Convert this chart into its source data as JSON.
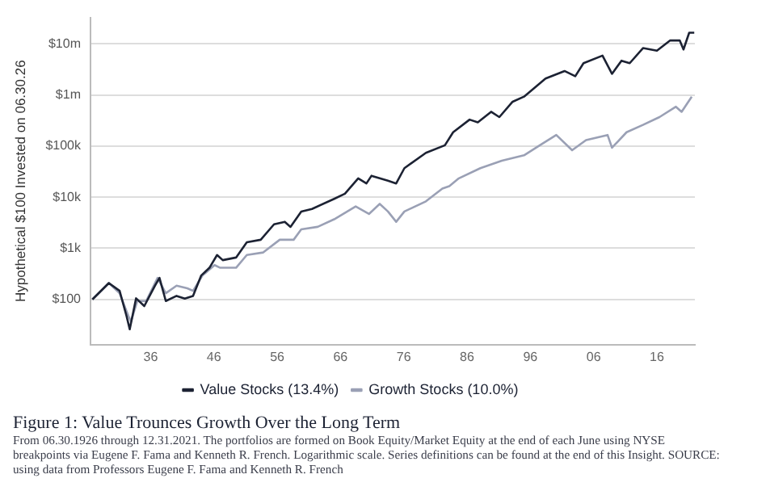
{
  "chart_data": {
    "type": "line",
    "ylabel": "Hypothetical $100 Invested on 06.30.26",
    "title": "Figure 1: Value Trounces Growth Over the Long Term",
    "annotations": [
      "From 06.30.1926 through 12.31.2021. The portfolios are formed on Book Equity/Market Equity at the end of each June using NYSE breakpoints via Eugene F. Fama and Kenneth R. French. Logarithmic scale. Series definitions can be found at the end of this Insight. SOURCE: using data from Professors Eugene F. Fama and Kenneth R. French"
    ],
    "log": "y",
    "grid": "y",
    "legend": "bottom",
    "marker": "none",
    "line_style": "solid",
    "xlim": [
      1926.5,
      2022
    ],
    "xticks": [
      {
        "value": 1936,
        "label": "36"
      },
      {
        "value": 1946,
        "label": "46"
      },
      {
        "value": 1956,
        "label": "56"
      },
      {
        "value": 1966,
        "label": "66"
      },
      {
        "value": 1976,
        "label": "76"
      },
      {
        "value": 1986,
        "label": "86"
      },
      {
        "value": 1996,
        "label": "96"
      },
      {
        "value": 2006,
        "label": "06"
      },
      {
        "value": 2016,
        "label": "16"
      }
    ],
    "ylim": [
      13,
      33000000
    ],
    "yticks": [
      {
        "value": 100,
        "label": "$100"
      },
      {
        "value": 1000,
        "label": "$1k"
      },
      {
        "value": 10000,
        "label": "$10k"
      },
      {
        "value": 100000,
        "label": "$100k"
      },
      {
        "value": 1000000,
        "label": "$1m"
      },
      {
        "value": 10000000,
        "label": "$10m"
      }
    ],
    "series": [
      {
        "name": "Value Stocks (13.4%)",
        "color": "#1c2233",
        "x": [
          1926.8,
          1929.4,
          1931.1,
          1932.2,
          1932.7,
          1933.7,
          1935,
          1936.7,
          1937.4,
          1938.4,
          1940.1,
          1941.4,
          1942.7,
          1944,
          1945.3,
          1946.5,
          1947.4,
          1949.5,
          1951.2,
          1953.4,
          1955.5,
          1957.2,
          1958.1,
          1959.8,
          1961.5,
          1965,
          1966.7,
          1968.8,
          1970.1,
          1970.9,
          1973.5,
          1974.8,
          1976.1,
          1979.5,
          1982.5,
          1983.8,
          1986.4,
          1987.7,
          1989.8,
          1991.1,
          1993.2,
          1995,
          1998.4,
          2001.4,
          2003.1,
          2004.4,
          2007.4,
          2008.9,
          2010.4,
          2011.7,
          2013.8,
          2016,
          2018.1,
          2019.6,
          2020.2,
          2021.1,
          2021.9
        ],
        "values": [
          100,
          209,
          147,
          47,
          26,
          105,
          74,
          186,
          263,
          93,
          117,
          104,
          117,
          294,
          416,
          740,
          587,
          660,
          1310,
          1470,
          2950,
          3300,
          2630,
          5250,
          5900,
          9300,
          11700,
          23400,
          18600,
          26300,
          21000,
          18600,
          37000,
          74000,
          104000,
          187000,
          330000,
          293000,
          470000,
          370000,
          740000,
          930000,
          2100000,
          2950000,
          2330000,
          4200000,
          5900000,
          2600000,
          4700000,
          4200000,
          8300000,
          7400000,
          11700000,
          11700000,
          7800000,
          16600000,
          16600000
        ]
      },
      {
        "name": "Growth Stocks (10.0%)",
        "color": "#9aa0b5",
        "x": [
          1926.8,
          1929.4,
          1931.1,
          1932.5,
          1932.9,
          1933.9,
          1935.3,
          1937.1,
          1938.4,
          1940.1,
          1941.8,
          1942.7,
          1944.2,
          1946.1,
          1947,
          1949.5,
          1951.2,
          1953.8,
          1956.4,
          1958.6,
          1959.8,
          1962.4,
          1965,
          1968.4,
          1970.5,
          1972.2,
          1973.5,
          1974.8,
          1976.1,
          1979.5,
          1982.1,
          1983.2,
          1984.7,
          1988.1,
          1991.5,
          1995,
          1997.5,
          2000.1,
          2002.6,
          2004.8,
          2008.2,
          2008.9,
          2011.2,
          2013.8,
          2016.4,
          2019,
          2019.9,
          2021.5
        ],
        "values": [
          100,
          209,
          132,
          47,
          37,
          93,
          93,
          263,
          132,
          186,
          165,
          147,
          294,
          470,
          416,
          416,
          740,
          830,
          1470,
          1470,
          2350,
          2630,
          3700,
          6600,
          4700,
          7400,
          5250,
          3300,
          5250,
          8300,
          14800,
          16500,
          23400,
          37000,
          52000,
          66000,
          104000,
          165000,
          83000,
          131000,
          165000,
          93000,
          187000,
          260000,
          370000,
          590000,
          470000,
          930000
        ]
      }
    ]
  }
}
